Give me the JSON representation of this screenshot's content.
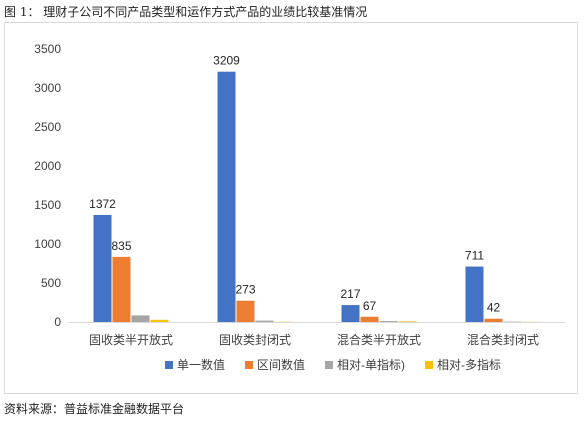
{
  "caption": "图 1：  理财子公司不同产品类型和运作方式产品的业绩比较基准情况",
  "source": "资料来源：普益标准金融数据平台",
  "chart_data": {
    "type": "bar",
    "categories": [
      "固收类半开放式",
      "固收类封闭式",
      "混合类半开放式",
      "混合类封闭式"
    ],
    "series": [
      {
        "name": "单一数值",
        "color": "#4472C4",
        "values": [
          1372,
          3209,
          217,
          711
        ],
        "labels": [
          "1372",
          "3209",
          "217",
          "711"
        ]
      },
      {
        "name": "区间数值",
        "color": "#ED7D31",
        "values": [
          835,
          273,
          67,
          42
        ],
        "labels": [
          "835",
          "273",
          "67",
          "42"
        ]
      },
      {
        "name": "相对-单指标)",
        "color": "#A5A5A5",
        "values": [
          85,
          18,
          12,
          5
        ],
        "labels": [
          "",
          "",
          "",
          ""
        ]
      },
      {
        "name": "相对-多指标",
        "color": "#FFC000",
        "values": [
          28,
          3,
          8,
          2
        ],
        "labels": [
          "",
          "",
          "",
          ""
        ]
      }
    ],
    "ylim": [
      0,
      3500
    ],
    "yticks": [
      0,
      500,
      1000,
      1500,
      2000,
      2500,
      3000,
      3500
    ],
    "grid": false,
    "legend": "bottom"
  }
}
